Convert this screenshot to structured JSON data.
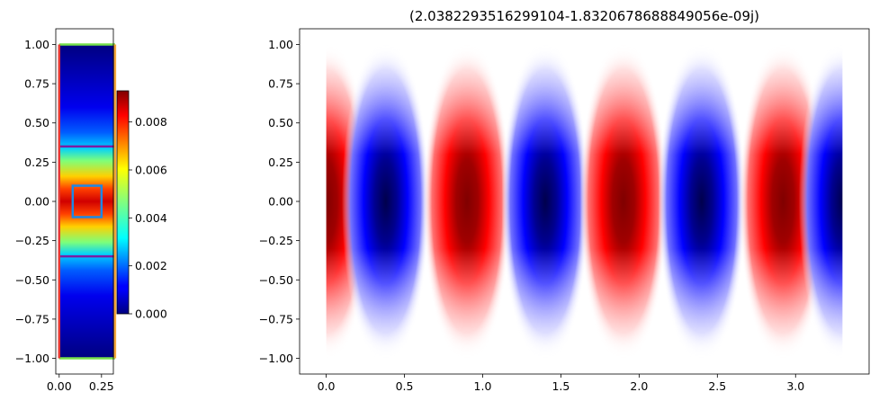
{
  "chart_data": [
    {
      "type": "heatmap",
      "title": "",
      "xlabel": "",
      "ylabel": "",
      "xlim": [
        -0.02,
        0.32
      ],
      "ylim": [
        -1.1,
        1.1
      ],
      "x_ticks": [
        {
          "value": 0.0,
          "label": "0.00"
        },
        {
          "value": 0.25,
          "label": "0.25"
        }
      ],
      "y_ticks": [
        {
          "value": -1.0,
          "label": "−1.00"
        },
        {
          "value": -0.75,
          "label": "−0.75"
        },
        {
          "value": -0.5,
          "label": "−0.50"
        },
        {
          "value": -0.25,
          "label": "−0.25"
        },
        {
          "value": 0.0,
          "label": "0.00"
        },
        {
          "value": 0.25,
          "label": "0.25"
        },
        {
          "value": 0.5,
          "label": "0.50"
        },
        {
          "value": 0.75,
          "label": "0.75"
        },
        {
          "value": 1.0,
          "label": "1.00"
        }
      ],
      "colormap": "jet",
      "colorbar": {
        "range": [
          0.0,
          0.0093
        ],
        "ticks": [
          {
            "value": 0.0,
            "label": "0.000"
          },
          {
            "value": 0.002,
            "label": "0.002"
          },
          {
            "value": 0.004,
            "label": "0.004"
          },
          {
            "value": 0.006,
            "label": "0.006"
          },
          {
            "value": 0.008,
            "label": "0.008"
          }
        ]
      },
      "overlays": [
        {
          "kind": "rect",
          "x0": 0.08,
          "x1": 0.25,
          "y0": -0.1,
          "y1": 0.1,
          "color": "#1e88e5"
        },
        {
          "kind": "hline",
          "y": 0.35,
          "x0": 0.0,
          "x1": 0.33,
          "color": "#7b1fa2"
        },
        {
          "kind": "hline",
          "y": -0.35,
          "x0": 0.0,
          "x1": 0.33,
          "color": "#7b1fa2"
        },
        {
          "kind": "hline",
          "y": 1.0,
          "x0": 0.0,
          "x1": 0.33,
          "color": "#76e04a"
        },
        {
          "kind": "hline",
          "y": -1.0,
          "x0": 0.0,
          "x1": 0.33,
          "color": "#76e04a"
        },
        {
          "kind": "vline",
          "x": 0.0,
          "y0": -1.0,
          "y1": 1.0,
          "color": "#e53935"
        },
        {
          "kind": "vline",
          "x": 0.33,
          "y0": -1.0,
          "y1": 1.0,
          "color": "#f4a63a"
        }
      ]
    },
    {
      "type": "heatmap",
      "title": "(2.0382293516299104-1.8320678688849056e-09j)",
      "xlabel": "",
      "ylabel": "",
      "xlim": [
        -0.17,
        3.47
      ],
      "ylim": [
        -1.1,
        1.1
      ],
      "x_ticks": [
        {
          "value": 0.0,
          "label": "0.0"
        },
        {
          "value": 0.5,
          "label": "0.5"
        },
        {
          "value": 1.0,
          "label": "1.0"
        },
        {
          "value": 1.5,
          "label": "1.5"
        },
        {
          "value": 2.0,
          "label": "2.0"
        },
        {
          "value": 2.5,
          "label": "2.5"
        },
        {
          "value": 3.0,
          "label": "3.0"
        }
      ],
      "y_ticks": [
        {
          "value": -1.0,
          "label": "−1.00"
        },
        {
          "value": -0.75,
          "label": "−0.75"
        },
        {
          "value": -0.5,
          "label": "−0.50"
        },
        {
          "value": -0.25,
          "label": "−0.25"
        },
        {
          "value": 0.0,
          "label": "0.00"
        },
        {
          "value": 0.25,
          "label": "0.25"
        },
        {
          "value": 0.5,
          "label": "0.50"
        },
        {
          "value": 0.75,
          "label": "0.75"
        },
        {
          "value": 1.0,
          "label": "1.00"
        }
      ],
      "colormap": "seismic",
      "field_extent": {
        "x": [
          0.0,
          3.3
        ],
        "y": [
          -1.0,
          1.0
        ]
      },
      "lobes": [
        {
          "x": 0.0,
          "sign": 1
        },
        {
          "x": 0.38,
          "sign": -1
        },
        {
          "x": 0.9,
          "sign": 1
        },
        {
          "x": 1.4,
          "sign": -1
        },
        {
          "x": 1.9,
          "sign": 1
        },
        {
          "x": 2.4,
          "sign": -1
        },
        {
          "x": 2.92,
          "sign": 1
        },
        {
          "x": 3.3,
          "sign": -1
        }
      ]
    }
  ]
}
